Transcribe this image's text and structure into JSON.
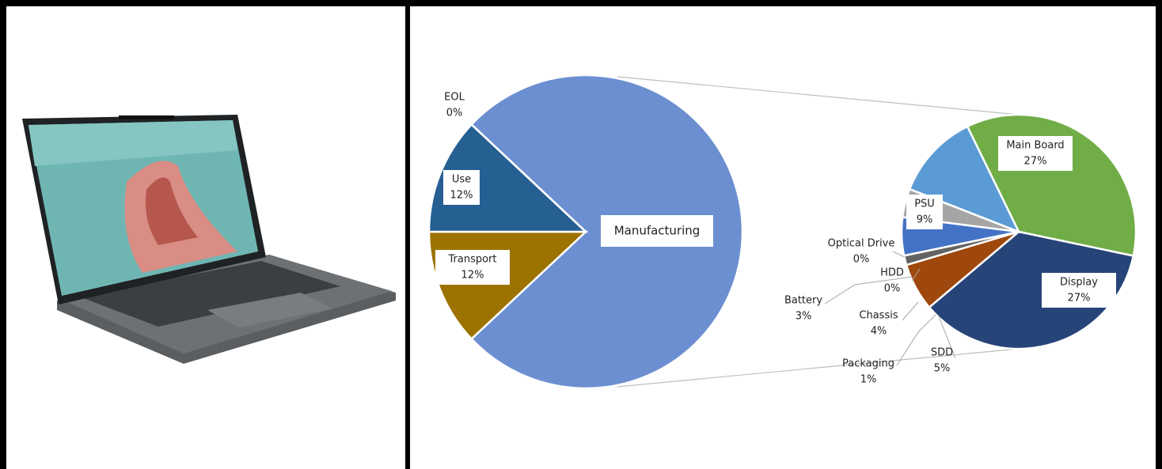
{
  "chart_data": [
    {
      "type": "pie",
      "categories": [
        "Manufacturing",
        "Transport",
        "Use",
        "EOL"
      ],
      "values": [
        76,
        12,
        12,
        0
      ],
      "value_labels": [
        null,
        "12%",
        "12%",
        "0%"
      ],
      "colors": [
        "#6b8fd0",
        "#9c7300",
        "#265f92",
        "#c9d3e6"
      ]
    },
    {
      "type": "pie",
      "categories": [
        "Main Board",
        "Display",
        "SDD",
        "Packaging",
        "Chassis",
        "Battery",
        "HDD",
        "Optical Drive",
        "PSU"
      ],
      "values": [
        27,
        27,
        5,
        1,
        4,
        3,
        0,
        0,
        9
      ],
      "value_labels": [
        "27%",
        "27%",
        "5%",
        "1%",
        "4%",
        "3%",
        "0%",
        "0%",
        "9%"
      ],
      "colors": [
        "#70ad47",
        "#264478",
        "#9e480e",
        "#636363",
        "#4472c4",
        "#a5a5a5",
        "#d0d0d0",
        "#bbbbbb",
        "#5b9bd5"
      ]
    }
  ]
}
